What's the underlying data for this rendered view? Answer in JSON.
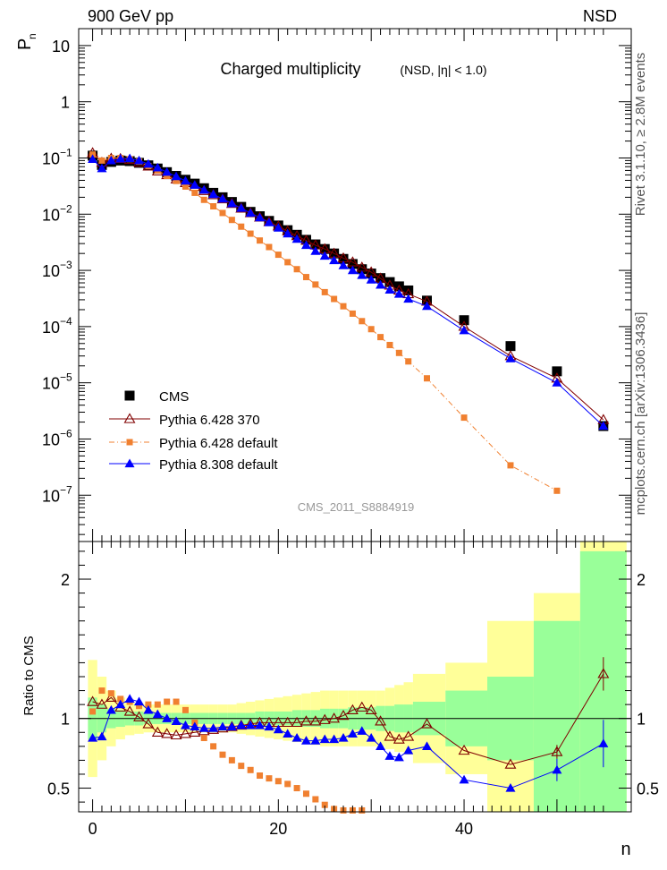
{
  "header": {
    "left": "900 GeV pp",
    "right": "NSD"
  },
  "side_labels": {
    "rivet": "Rivet 3.1.10, ≥ 2.8M events",
    "mcplots": "mcplots.cern.ch [arXiv:1306.3436]"
  },
  "chart_data": [
    {
      "type": "scatter",
      "title": "Charged multiplicity",
      "subtitle": "(NSD, |η| < 1.0)",
      "watermark": "CMS_2011_S8884919",
      "ylabel_main": "P",
      "ylabel_sub": "n",
      "xlabel": "n",
      "xlim": [
        -1.5,
        58
      ],
      "ylim": [
        1.5e-08,
        20
      ],
      "yscale": "log",
      "x_ticks": [
        0,
        20,
        40
      ],
      "y_tick_labels": [
        {
          "value": 10,
          "base": "10",
          "exp": ""
        },
        {
          "value": 1,
          "base": "1",
          "exp": ""
        },
        {
          "value": 0.1,
          "base": "10",
          "exp": "−1"
        },
        {
          "value": 0.01,
          "base": "10",
          "exp": "−2"
        },
        {
          "value": 0.001,
          "base": "10",
          "exp": "−3"
        },
        {
          "value": 0.0001,
          "base": "10",
          "exp": "−4"
        },
        {
          "value": 1e-05,
          "base": "10",
          "exp": "−5"
        },
        {
          "value": 1e-06,
          "base": "10",
          "exp": "−6"
        },
        {
          "value": 1e-07,
          "base": "10",
          "exp": "−7"
        }
      ],
      "legend_position": "bottom-left",
      "series": [
        {
          "name": "CMS",
          "color": "#000000",
          "marker": "square",
          "x": [
            0,
            1,
            2,
            3,
            4,
            5,
            6,
            7,
            8,
            9,
            10,
            11,
            12,
            13,
            14,
            15,
            16,
            17,
            18,
            19,
            20,
            21,
            22,
            23,
            24,
            25,
            26,
            27,
            28,
            29,
            30,
            31,
            32,
            33,
            34,
            36,
            40,
            45,
            50,
            55
          ],
          "y": [
            0.11,
            0.075,
            0.085,
            0.09,
            0.088,
            0.082,
            0.074,
            0.065,
            0.056,
            0.048,
            0.041,
            0.035,
            0.029,
            0.024,
            0.02,
            0.0165,
            0.0135,
            0.011,
            0.0092,
            0.0076,
            0.0063,
            0.0052,
            0.0043,
            0.0035,
            0.0029,
            0.0024,
            0.002,
            0.0016,
            0.0013,
            0.00105,
            0.00088,
            0.00073,
            0.00062,
            0.00052,
            0.00044,
            0.00029,
            0.00013,
            4.5e-05,
            1.6e-05,
            1.7e-06
          ]
        },
        {
          "name": "Pythia 6.428 370",
          "color": "#800000",
          "marker": "open-triangle",
          "x": [
            0,
            1,
            2,
            3,
            4,
            5,
            6,
            7,
            8,
            9,
            10,
            11,
            12,
            13,
            14,
            15,
            16,
            17,
            18,
            19,
            20,
            21,
            22,
            23,
            24,
            25,
            26,
            27,
            28,
            29,
            30,
            31,
            32,
            33,
            34,
            36,
            40,
            45,
            50,
            55
          ],
          "y": [
            0.123,
            0.083,
            0.098,
            0.097,
            0.093,
            0.083,
            0.071,
            0.058,
            0.05,
            0.042,
            0.036,
            0.031,
            0.026,
            0.022,
            0.0185,
            0.0154,
            0.0127,
            0.0105,
            0.0088,
            0.0073,
            0.0061,
            0.005,
            0.0041,
            0.0034,
            0.0028,
            0.0024,
            0.002,
            0.00165,
            0.0014,
            0.00113,
            0.00093,
            0.00072,
            0.00054,
            0.00044,
            0.00038,
            0.00028,
            0.0001,
            3e-05,
            1.2e-05,
            2.2e-06
          ]
        },
        {
          "name": "Pythia 6.428 default",
          "color": "#f08030",
          "marker": "square-small",
          "x": [
            0,
            1,
            2,
            3,
            4,
            5,
            6,
            7,
            8,
            9,
            10,
            11,
            12,
            13,
            14,
            15,
            16,
            17,
            18,
            19,
            20,
            21,
            22,
            23,
            24,
            25,
            26,
            27,
            28,
            29,
            30,
            31,
            32,
            33,
            34,
            36,
            40,
            45,
            50
          ],
          "y": [
            0.115,
            0.09,
            0.1,
            0.1,
            0.095,
            0.086,
            0.072,
            0.06,
            0.048,
            0.039,
            0.031,
            0.024,
            0.018,
            0.0138,
            0.0105,
            0.0079,
            0.006,
            0.0045,
            0.0034,
            0.0026,
            0.0019,
            0.0014,
            0.00105,
            0.00076,
            0.00056,
            0.00041,
            0.00031,
            0.00023,
            0.00017,
            0.000125,
            9e-05,
            6.5e-05,
            4.7e-05,
            3.4e-05,
            2.4e-05,
            1.2e-05,
            2.4e-06,
            3.4e-07,
            1.2e-07
          ]
        },
        {
          "name": "Pythia 8.308 default",
          "color": "#0000ff",
          "marker": "triangle",
          "x": [
            0,
            1,
            2,
            3,
            4,
            5,
            6,
            7,
            8,
            9,
            10,
            11,
            12,
            13,
            14,
            15,
            16,
            17,
            18,
            19,
            20,
            21,
            22,
            23,
            24,
            25,
            26,
            27,
            28,
            29,
            30,
            31,
            32,
            33,
            34,
            36,
            40,
            45,
            50,
            55
          ],
          "y": [
            0.095,
            0.065,
            0.09,
            0.097,
            0.098,
            0.09,
            0.078,
            0.067,
            0.056,
            0.047,
            0.039,
            0.033,
            0.027,
            0.0225,
            0.0188,
            0.0155,
            0.0128,
            0.0105,
            0.0087,
            0.0071,
            0.0057,
            0.0045,
            0.0036,
            0.0028,
            0.0022,
            0.0018,
            0.0015,
            0.00122,
            0.001,
            0.00082,
            0.00068,
            0.00055,
            0.00045,
            0.00038,
            0.00031,
            0.00023,
            8.5e-05,
            2.7e-05,
            1e-05,
            1.7e-06
          ]
        }
      ]
    },
    {
      "type": "scatter",
      "ylabel": "Ratio to CMS",
      "xlabel": "n",
      "xlim": [
        -1.5,
        58
      ],
      "ylim": [
        0.33,
        2.27
      ],
      "x_ticks": [
        0,
        20,
        40
      ],
      "y_ticks": [
        0.5,
        1,
        2
      ],
      "y_tick_labels": [
        "0.5",
        "1",
        "2"
      ],
      "reference_line": 1,
      "uncertainty_bands": {
        "edges": [
          -0.5,
          0.5,
          1.5,
          2.5,
          3.5,
          4.5,
          5.5,
          6.5,
          7.5,
          8.5,
          9.5,
          10.5,
          11.5,
          12.5,
          13.5,
          14.5,
          15.5,
          16.5,
          17.5,
          18.5,
          19.5,
          20.5,
          21.5,
          22.5,
          23.5,
          24.5,
          25.5,
          26.5,
          27.5,
          28.5,
          29.5,
          30.5,
          31.5,
          32.5,
          33.5,
          34.5,
          38,
          42.5,
          47.5,
          52.5,
          57.5
        ],
        "outer_color": "#ffff99",
        "inner_color": "#99ff99",
        "outer_half_width": [
          0.42,
          0.3,
          0.2,
          0.15,
          0.12,
          0.11,
          0.1,
          0.1,
          0.1,
          0.1,
          0.1,
          0.1,
          0.1,
          0.1,
          0.1,
          0.1,
          0.11,
          0.12,
          0.13,
          0.14,
          0.15,
          0.16,
          0.17,
          0.18,
          0.19,
          0.2,
          0.2,
          0.2,
          0.2,
          0.2,
          0.2,
          0.2,
          0.22,
          0.24,
          0.26,
          0.32,
          0.4,
          0.7,
          0.9,
          1.5
        ],
        "inner_half_width": [
          0.15,
          0.1,
          0.07,
          0.06,
          0.05,
          0.05,
          0.04,
          0.04,
          0.04,
          0.04,
          0.04,
          0.04,
          0.04,
          0.04,
          0.04,
          0.04,
          0.04,
          0.04,
          0.05,
          0.05,
          0.05,
          0.05,
          0.06,
          0.06,
          0.06,
          0.07,
          0.07,
          0.07,
          0.08,
          0.08,
          0.08,
          0.09,
          0.09,
          0.1,
          0.1,
          0.12,
          0.2,
          0.3,
          0.7,
          1.2
        ]
      },
      "series": [
        {
          "name": "Pythia 6.428 370",
          "color": "#800000",
          "marker": "open-triangle",
          "x": [
            0,
            1,
            2,
            3,
            4,
            5,
            6,
            7,
            8,
            9,
            10,
            11,
            12,
            13,
            14,
            15,
            16,
            17,
            18,
            19,
            20,
            21,
            22,
            23,
            24,
            25,
            26,
            27,
            28,
            29,
            30,
            31,
            32,
            33,
            34,
            36,
            40,
            45,
            50,
            55
          ],
          "y": [
            1.12,
            1.1,
            1.15,
            1.08,
            1.05,
            1.01,
            0.96,
            0.9,
            0.89,
            0.88,
            0.89,
            0.9,
            0.91,
            0.92,
            0.93,
            0.94,
            0.95,
            0.96,
            0.97,
            0.97,
            0.97,
            0.97,
            0.97,
            0.98,
            0.98,
            0.99,
            1.0,
            1.02,
            1.06,
            1.08,
            1.06,
            0.98,
            0.87,
            0.85,
            0.87,
            0.96,
            0.77,
            0.67,
            0.76,
            1.32
          ],
          "y_err": [
            0.03,
            0.03,
            0.02,
            0.02,
            0.02,
            0.02,
            0.02,
            0.02,
            0.02,
            0.02,
            0.02,
            0.02,
            0.02,
            0.02,
            0.02,
            0.02,
            0.02,
            0.02,
            0.02,
            0.02,
            0.02,
            0.02,
            0.02,
            0.02,
            0.02,
            0.02,
            0.02,
            0.02,
            0.02,
            0.02,
            0.02,
            0.02,
            0.02,
            0.02,
            0.02,
            0.02,
            0.02,
            0.03,
            0.05,
            0.12
          ]
        },
        {
          "name": "Pythia 6.428 default",
          "color": "#f08030",
          "marker": "square-small",
          "x": [
            0,
            1,
            2,
            3,
            4,
            5,
            6,
            7,
            8,
            9,
            10,
            11,
            12,
            13,
            14,
            15,
            16,
            17,
            18,
            19,
            20,
            21,
            22,
            23,
            24,
            25,
            26,
            27,
            28,
            29
          ],
          "y": [
            1.05,
            1.2,
            1.18,
            1.14,
            1.12,
            1.09,
            1.1,
            1.1,
            1.12,
            1.12,
            1.06,
            0.97,
            0.86,
            0.8,
            0.74,
            0.7,
            0.66,
            0.63,
            0.59,
            0.57,
            0.55,
            0.53,
            0.5,
            0.46,
            0.42,
            0.38,
            0.35,
            0.34,
            0.34,
            0.34
          ],
          "y_err": []
        },
        {
          "name": "Pythia 8.308 default",
          "color": "#0000ff",
          "marker": "triangle",
          "x": [
            0,
            1,
            2,
            3,
            4,
            5,
            6,
            7,
            8,
            9,
            10,
            11,
            12,
            13,
            14,
            15,
            16,
            17,
            18,
            19,
            20,
            21,
            22,
            23,
            24,
            25,
            26,
            27,
            28,
            29,
            30,
            31,
            32,
            33,
            34,
            36,
            40,
            45,
            50,
            55
          ],
          "y": [
            0.86,
            0.87,
            1.06,
            1.1,
            1.14,
            1.12,
            1.06,
            1.03,
            1.0,
            0.98,
            0.95,
            0.94,
            0.93,
            0.93,
            0.94,
            0.94,
            0.95,
            0.95,
            0.95,
            0.94,
            0.92,
            0.89,
            0.86,
            0.84,
            0.84,
            0.85,
            0.85,
            0.86,
            0.89,
            0.91,
            0.86,
            0.8,
            0.73,
            0.72,
            0.77,
            0.8,
            0.56,
            0.5,
            0.63,
            0.82
          ],
          "y_err": [
            0.02,
            0.02,
            0.02,
            0.02,
            0.02,
            0.02,
            0.02,
            0.02,
            0.02,
            0.02,
            0.02,
            0.02,
            0.02,
            0.02,
            0.02,
            0.02,
            0.02,
            0.02,
            0.02,
            0.02,
            0.02,
            0.02,
            0.02,
            0.02,
            0.02,
            0.02,
            0.02,
            0.02,
            0.02,
            0.02,
            0.02,
            0.02,
            0.02,
            0.02,
            0.02,
            0.02,
            0.02,
            0.03,
            0.08,
            0.17
          ]
        }
      ]
    }
  ]
}
